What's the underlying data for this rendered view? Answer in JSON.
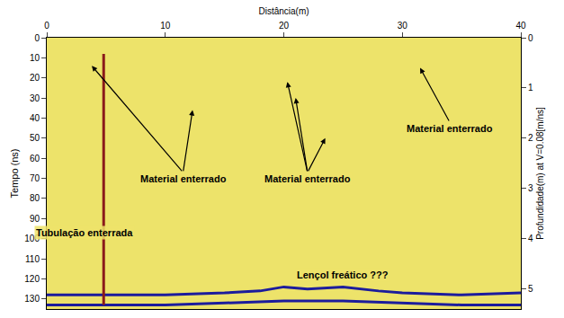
{
  "chart_data": {
    "type": "radargram",
    "x_title": "Distância(m)",
    "y_title": "Tempo (ns)",
    "y2_title": "Profundidade(m) at V=0.08[m/ns]",
    "xlim": [
      0,
      40
    ],
    "xticks": [
      0,
      10,
      20,
      30,
      40
    ],
    "ylim": [
      135,
      0
    ],
    "yticks": [
      0,
      10,
      20,
      30,
      40,
      50,
      60,
      70,
      80,
      90,
      100,
      110,
      120,
      130
    ],
    "y2lim": [
      5.4,
      0
    ],
    "y2ticks": [
      0,
      1,
      2,
      3,
      4,
      5
    ],
    "grid": false,
    "color": "#ede36a",
    "lines": [
      {
        "color": "#1c1c9c",
        "x": [
          0,
          5,
          10,
          15,
          18,
          20,
          22,
          25,
          28,
          30,
          35,
          40
        ],
        "y": [
          128,
          128,
          128,
          127,
          126,
          124,
          125,
          124,
          126,
          127,
          128,
          127
        ]
      },
      {
        "color": "#1c1c9c",
        "x": [
          0,
          5,
          10,
          15,
          20,
          25,
          30,
          35,
          40
        ],
        "y": [
          133,
          133,
          133,
          132,
          131,
          131,
          132,
          133,
          133
        ]
      },
      {
        "color": "#8b1a1a",
        "x": [
          4.8,
          4.8
        ],
        "y": [
          8,
          133
        ]
      }
    ],
    "annotations": [
      {
        "text": "Material enterrado",
        "x": 11.5,
        "y": 70,
        "arrows": [
          [
            3.8,
            14
          ],
          [
            12.3,
            36
          ]
        ]
      },
      {
        "text": "Material enterrado",
        "x": 22,
        "y": 70,
        "arrows": [
          [
            20.3,
            22
          ],
          [
            21,
            30
          ],
          [
            23.5,
            50
          ]
        ]
      },
      {
        "text": "Material enterrado",
        "x": 34,
        "y": 45,
        "arrows": [
          [
            31.5,
            15
          ]
        ]
      },
      {
        "text": "Tubulação enterrada",
        "x": 3.2,
        "y": 97,
        "arrows": []
      },
      {
        "text": "Lençol freático ???",
        "x": 25,
        "y": 118,
        "arrows": []
      }
    ]
  }
}
